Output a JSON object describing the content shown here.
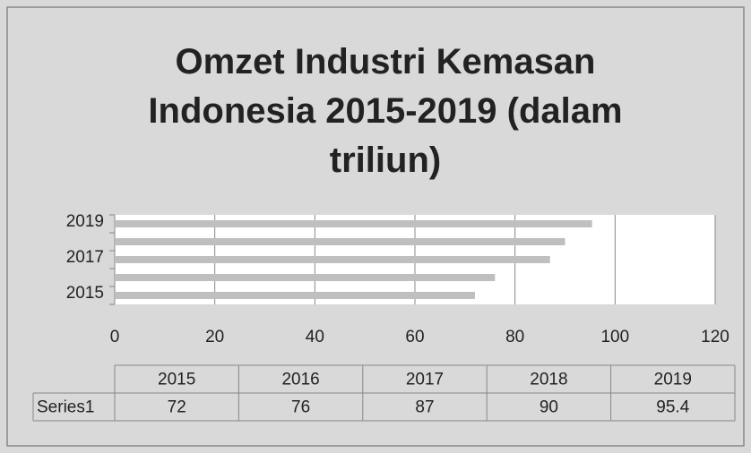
{
  "chart_data": {
    "type": "bar",
    "orientation": "horizontal",
    "title": "Omzet Industri Kemasan Indonesia 2015-2019 (dalam triliun)",
    "categories": [
      "2015",
      "2016",
      "2017",
      "2018",
      "2019"
    ],
    "series": [
      {
        "name": "Series1",
        "color": "#bfbfbf",
        "values": [
          72,
          76,
          87,
          90,
          95.4
        ]
      }
    ],
    "xlim": [
      0,
      120
    ],
    "xticks": [
      0,
      20,
      40,
      60,
      80,
      100,
      120
    ],
    "grid": true,
    "data_table": true
  }
}
